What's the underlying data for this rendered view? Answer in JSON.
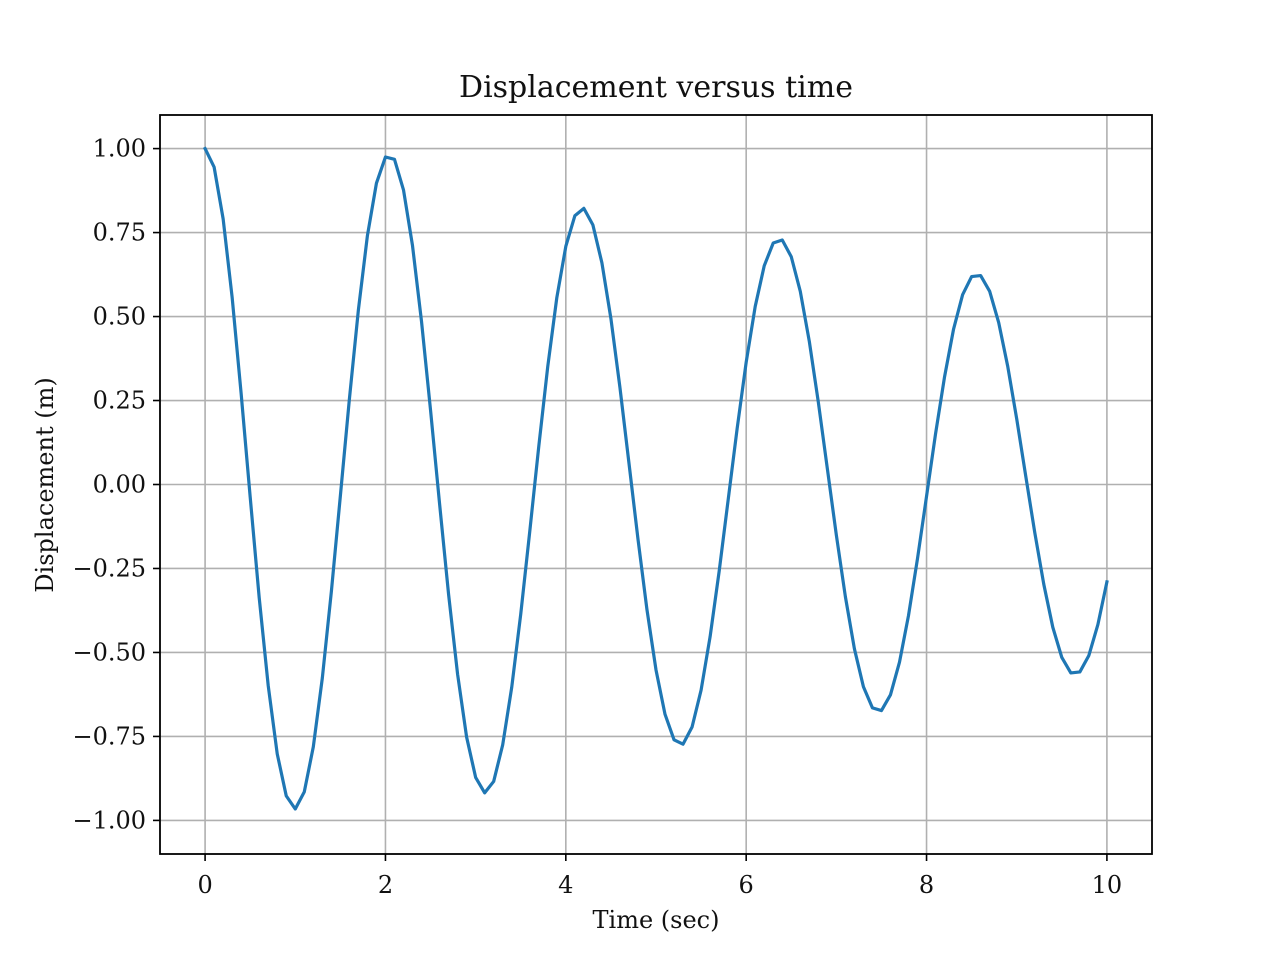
{
  "chart_data": {
    "type": "line",
    "title": "Displacement versus time",
    "xlabel": "Time (sec)",
    "ylabel": "Displacement (m)",
    "xlim": [
      -0.5,
      10.5
    ],
    "ylim": [
      -1.1,
      1.1
    ],
    "x_ticks": [
      {
        "value": 0,
        "label": "0"
      },
      {
        "value": 2,
        "label": "2"
      },
      {
        "value": 4,
        "label": "4"
      },
      {
        "value": 6,
        "label": "6"
      },
      {
        "value": 8,
        "label": "8"
      },
      {
        "value": 10,
        "label": "10"
      }
    ],
    "y_ticks": [
      {
        "value": 1.0,
        "label": "1.00"
      },
      {
        "value": 0.75,
        "label": "0.75"
      },
      {
        "value": 0.5,
        "label": "0.50"
      },
      {
        "value": 0.25,
        "label": "0.25"
      },
      {
        "value": 0.0,
        "label": "0.00"
      },
      {
        "value": -0.25,
        "label": "−0.25"
      },
      {
        "value": -0.5,
        "label": "−0.50"
      },
      {
        "value": -0.75,
        "label": "−0.75"
      },
      {
        "value": -1.0,
        "label": "−1.00"
      }
    ],
    "grid": true,
    "series": [
      {
        "color": "#1f77b4",
        "x": [
          0.0,
          0.1,
          0.2,
          0.3,
          0.4,
          0.5,
          0.6,
          0.7,
          0.8,
          0.9,
          1.0,
          1.1,
          1.2,
          1.3,
          1.4,
          1.5,
          1.6,
          1.7,
          1.8,
          1.9,
          2.0,
          2.1,
          2.2,
          2.3,
          2.4,
          2.5,
          2.6,
          2.7,
          2.8,
          2.9,
          3.0,
          3.1,
          3.2,
          3.3,
          3.4,
          3.5,
          3.6,
          3.7,
          3.8,
          3.9,
          4.0,
          4.1,
          4.2,
          4.3,
          4.4,
          4.5,
          4.6,
          4.7,
          4.8,
          4.9,
          5.0,
          5.1,
          5.2,
          5.3,
          5.4,
          5.5,
          5.6,
          5.7,
          5.8,
          5.9,
          6.0,
          6.1,
          6.2,
          6.3,
          6.4,
          6.5,
          6.6,
          6.7,
          6.8,
          6.9,
          7.0,
          7.1,
          7.2,
          7.3,
          7.4,
          7.5,
          7.6,
          7.7,
          7.8,
          7.9,
          8.0,
          8.1,
          8.2,
          8.3,
          8.4,
          8.5,
          8.6,
          8.7,
          8.8,
          8.9,
          9.0,
          9.1,
          9.2,
          9.3,
          9.4,
          9.5,
          9.6,
          9.7,
          9.8,
          9.9,
          10.0
        ],
        "y": [
          1.0,
          0.945,
          0.791,
          0.557,
          0.27,
          -0.037,
          -0.337,
          -0.599,
          -0.802,
          -0.927,
          -0.966,
          -0.915,
          -0.781,
          -0.576,
          -0.319,
          -0.034,
          0.254,
          0.52,
          0.741,
          0.897,
          0.975,
          0.968,
          0.877,
          0.711,
          0.485,
          0.221,
          -0.057,
          -0.327,
          -0.565,
          -0.752,
          -0.872,
          -0.918,
          -0.884,
          -0.775,
          -0.604,
          -0.386,
          -0.14,
          0.113,
          0.352,
          0.556,
          0.709,
          0.8,
          0.822,
          0.773,
          0.66,
          0.494,
          0.289,
          0.064,
          -0.162,
          -0.373,
          -0.552,
          -0.684,
          -0.76,
          -0.773,
          -0.722,
          -0.612,
          -0.453,
          -0.259,
          -0.046,
          0.167,
          0.364,
          0.53,
          0.651,
          0.719,
          0.728,
          0.678,
          0.575,
          0.426,
          0.245,
          0.047,
          -0.151,
          -0.334,
          -0.489,
          -0.602,
          -0.665,
          -0.673,
          -0.626,
          -0.529,
          -0.39,
          -0.22,
          -0.035,
          0.151,
          0.321,
          0.463,
          0.565,
          0.619,
          0.622,
          0.575,
          0.482,
          0.352,
          0.195,
          0.025,
          -0.143,
          -0.297,
          -0.425,
          -0.515,
          -0.561,
          -0.558,
          -0.509,
          -0.417,
          -0.29
        ],
        "note_units": "m"
      }
    ]
  }
}
